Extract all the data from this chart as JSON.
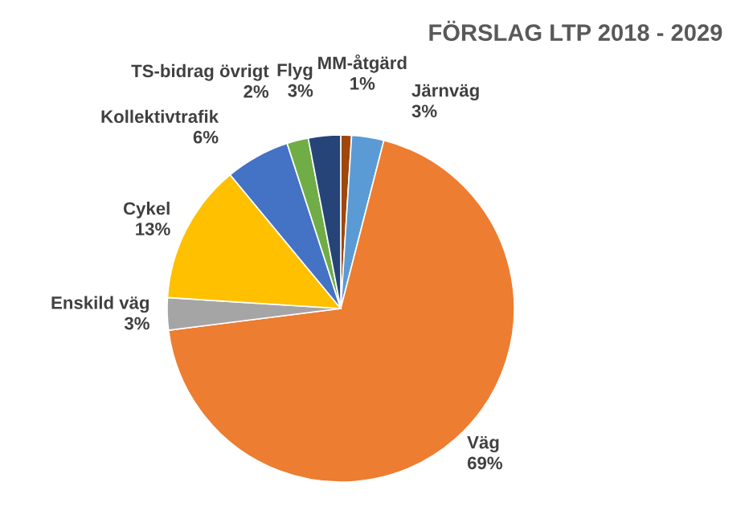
{
  "chart_data": {
    "type": "pie",
    "title": "FÖRSLAG LTP 2018 - 2029",
    "categories": [
      "MM-åtgärd",
      "Järnväg",
      "Väg",
      "Enskild väg",
      "Cykel",
      "Kollektivtrafik",
      "TS-bidrag övrigt",
      "Flyg"
    ],
    "values": [
      1,
      3,
      69,
      3,
      13,
      6,
      2,
      3
    ],
    "colors": [
      "#9e480e",
      "#5b9bd5",
      "#ed7d31",
      "#a5a5a5",
      "#ffc000",
      "#4472c4",
      "#70ad47",
      "#264478"
    ],
    "value_labels": [
      "1%",
      "3%",
      "69%",
      "3%",
      "13%",
      "6%",
      "2%",
      "3%"
    ],
    "legend": false
  }
}
